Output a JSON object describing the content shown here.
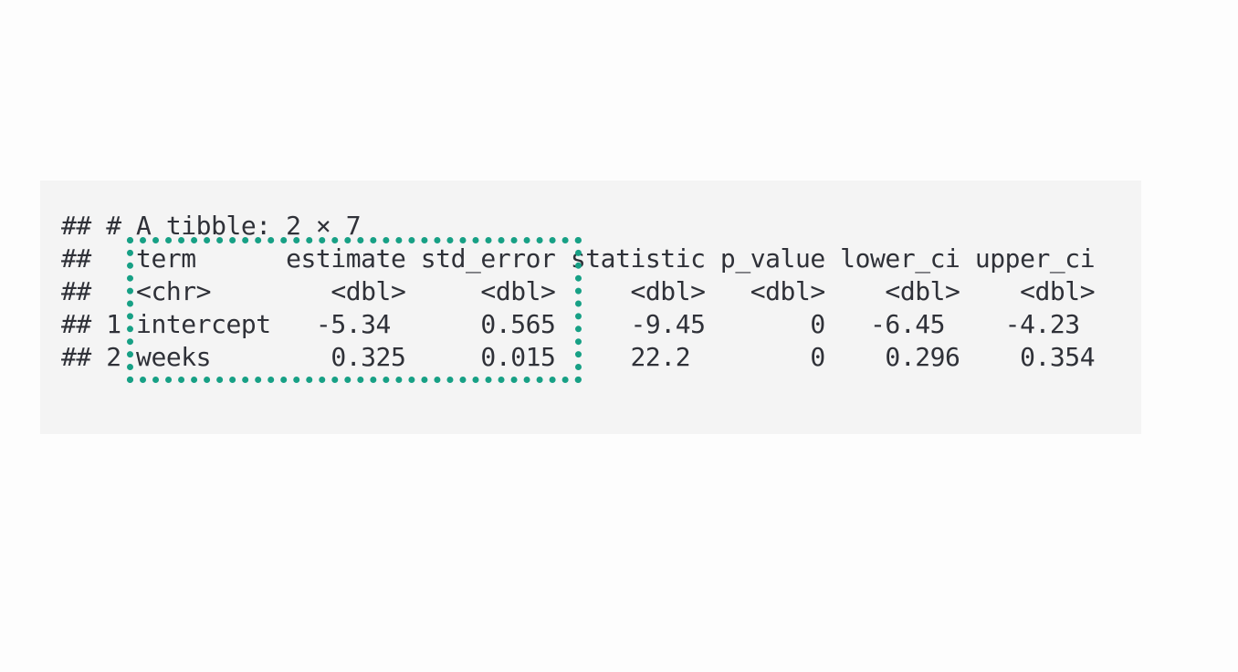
{
  "console": {
    "header": "## # A tibble: 2 × 7",
    "lines": [
      "##   term      estimate std_error statistic p_value lower_ci upper_ci",
      "##   <chr>        <dbl>     <dbl>     <dbl>   <dbl>    <dbl>    <dbl>",
      "## 1 intercept   -5.34      0.565     -9.45       0   -6.45    -4.23 ",
      "## 2 weeks        0.325     0.015     22.2        0    0.296    0.354"
    ]
  },
  "table": {
    "dimensions": "2 × 7",
    "columns": [
      "term",
      "estimate",
      "std_error",
      "statistic",
      "p_value",
      "lower_ci",
      "upper_ci"
    ],
    "types": [
      "<chr>",
      "<dbl>",
      "<dbl>",
      "<dbl>",
      "<dbl>",
      "<dbl>",
      "<dbl>"
    ],
    "rows": [
      [
        "intercept",
        "-5.34",
        "0.565",
        "-9.45",
        "0",
        "-6.45",
        "-4.23"
      ],
      [
        "weeks",
        "0.325",
        "0.015",
        "22.2",
        "0",
        "0.296",
        "0.354"
      ]
    ],
    "highlighted_columns": [
      "term",
      "estimate",
      "std_error"
    ]
  },
  "colors": {
    "highlight": "#17a085",
    "background": "#f4f4f4",
    "text": "#2f3138"
  }
}
